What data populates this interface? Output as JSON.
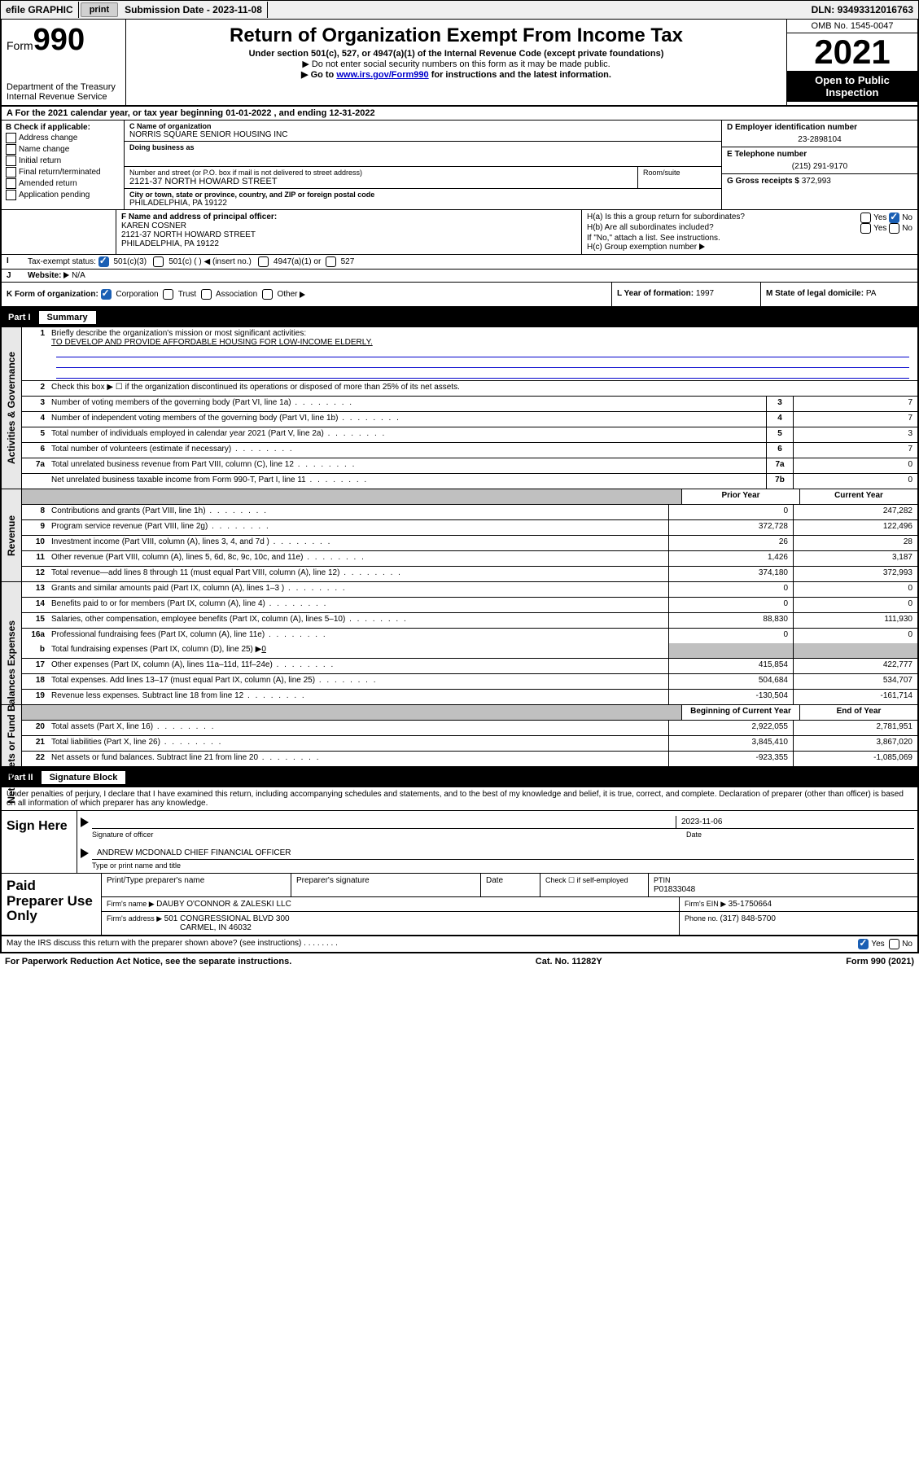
{
  "topbar": {
    "efile": "efile GRAPHIC",
    "print": "print",
    "submission_label": "Submission Date - ",
    "submission_date": "2023-11-08",
    "dln_label": "DLN: ",
    "dln": "93493312016763"
  },
  "header": {
    "form_word": "Form",
    "form_num": "990",
    "dept": "Department of the Treasury",
    "irs": "Internal Revenue Service",
    "title": "Return of Organization Exempt From Income Tax",
    "subtitle": "Under section 501(c), 527, or 4947(a)(1) of the Internal Revenue Code (except private foundations)",
    "note1": "Do not enter social security numbers on this form as it may be made public.",
    "note2_pre": "Go to ",
    "note2_link": "www.irs.gov/Form990",
    "note2_post": " for instructions and the latest information.",
    "omb": "OMB No. 1545-0047",
    "year": "2021",
    "inspection": "Open to Public Inspection"
  },
  "sectionA": {
    "text_pre": "For the 2021 calendar year, or tax year beginning ",
    "begin": "01-01-2022",
    "mid": " , and ending ",
    "end": "12-31-2022"
  },
  "boxB": {
    "title": "B Check if applicable:",
    "items": [
      "Address change",
      "Name change",
      "Initial return",
      "Final return/terminated",
      "Amended return",
      "Application pending"
    ]
  },
  "boxC": {
    "name_label": "C Name of organization",
    "name": "NORRIS SQUARE SENIOR HOUSING INC",
    "dba_label": "Doing business as",
    "dba": "",
    "street_label": "Number and street (or P.O. box if mail is not delivered to street address)",
    "room_label": "Room/suite",
    "street": "2121-37 NORTH HOWARD STREET",
    "city_label": "City or town, state or province, country, and ZIP or foreign postal code",
    "city": "PHILADELPHIA, PA  19122"
  },
  "boxD": {
    "label": "D Employer identification number",
    "value": "23-2898104"
  },
  "boxE": {
    "label": "E Telephone number",
    "value": "(215) 291-9170"
  },
  "boxG": {
    "label": "G Gross receipts $ ",
    "value": "372,993"
  },
  "boxF": {
    "label": "F Name and address of principal officer:",
    "name": "KAREN COSNER",
    "street": "2121-37 NORTH HOWARD STREET",
    "city": "PHILADELPHIA, PA  19122"
  },
  "boxH": {
    "a_label": "H(a)  Is this a group return for subordinates?",
    "b_label": "H(b)  Are all subordinates included?",
    "b_note": "If \"No,\" attach a list. See instructions.",
    "c_label": "H(c)  Group exemption number ",
    "yes": "Yes",
    "no": "No"
  },
  "boxI": {
    "label": "Tax-exempt status:",
    "opt1": "501(c)(3)",
    "opt2": "501(c) (   )  ",
    "opt2_note": "(insert no.)",
    "opt3": "4947(a)(1) or",
    "opt4": "527"
  },
  "boxJ": {
    "label": "Website: ",
    "value": "N/A"
  },
  "boxK": {
    "label": "K Form of organization:",
    "opts": [
      "Corporation",
      "Trust",
      "Association",
      "Other "
    ]
  },
  "boxL": {
    "label": "L Year of formation: ",
    "value": "1997"
  },
  "boxM": {
    "label": "M State of legal domicile: ",
    "value": "PA"
  },
  "part1": {
    "label": "Part I",
    "title": "Summary"
  },
  "governance": {
    "side": "Activities & Governance",
    "l1": "Briefly describe the organization's mission or most significant activities:",
    "l1_text": "TO DEVELOP AND PROVIDE AFFORDABLE HOUSING FOR LOW-INCOME ELDERLY.",
    "l2": "Check this box  ▶ ☐  if the organization discontinued its operations or disposed of more than 25% of its net assets.",
    "l3": "Number of voting members of the governing body (Part VI, line 1a)",
    "l3_val": "7",
    "l4": "Number of independent voting members of the governing body (Part VI, line 1b)",
    "l4_val": "7",
    "l5": "Total number of individuals employed in calendar year 2021 (Part V, line 2a)",
    "l5_val": "3",
    "l6": "Total number of volunteers (estimate if necessary)",
    "l6_val": "7",
    "l7a": "Total unrelated business revenue from Part VIII, column (C), line 12",
    "l7a_val": "0",
    "l7b": "Net unrelated business taxable income from Form 990-T, Part I, line 11",
    "l7b_val": "0"
  },
  "revenue": {
    "side": "Revenue",
    "head_prior": "Prior Year",
    "head_current": "Current Year",
    "rows": [
      {
        "n": "8",
        "d": "Contributions and grants (Part VIII, line 1h)",
        "p": "0",
        "c": "247,282"
      },
      {
        "n": "9",
        "d": "Program service revenue (Part VIII, line 2g)",
        "p": "372,728",
        "c": "122,496"
      },
      {
        "n": "10",
        "d": "Investment income (Part VIII, column (A), lines 3, 4, and 7d )",
        "p": "26",
        "c": "28"
      },
      {
        "n": "11",
        "d": "Other revenue (Part VIII, column (A), lines 5, 6d, 8c, 9c, 10c, and 11e)",
        "p": "1,426",
        "c": "3,187"
      },
      {
        "n": "12",
        "d": "Total revenue—add lines 8 through 11 (must equal Part VIII, column (A), line 12)",
        "p": "374,180",
        "c": "372,993"
      }
    ]
  },
  "expenses": {
    "side": "Expenses",
    "rows": [
      {
        "n": "13",
        "d": "Grants and similar amounts paid (Part IX, column (A), lines 1–3 )",
        "p": "0",
        "c": "0"
      },
      {
        "n": "14",
        "d": "Benefits paid to or for members (Part IX, column (A), line 4)",
        "p": "0",
        "c": "0"
      },
      {
        "n": "15",
        "d": "Salaries, other compensation, employee benefits (Part IX, column (A), lines 5–10)",
        "p": "88,830",
        "c": "111,930"
      },
      {
        "n": "16a",
        "d": "Professional fundraising fees (Part IX, column (A), line 11e)",
        "p": "0",
        "c": "0"
      }
    ],
    "l16b_pre": "Total fundraising expenses (Part IX, column (D), line 25) ▶",
    "l16b_val": "0",
    "rows2": [
      {
        "n": "17",
        "d": "Other expenses (Part IX, column (A), lines 11a–11d, 11f–24e)",
        "p": "415,854",
        "c": "422,777"
      },
      {
        "n": "18",
        "d": "Total expenses. Add lines 13–17 (must equal Part IX, column (A), line 25)",
        "p": "504,684",
        "c": "534,707"
      },
      {
        "n": "19",
        "d": "Revenue less expenses. Subtract line 18 from line 12",
        "p": "-130,504",
        "c": "-161,714"
      }
    ]
  },
  "netassets": {
    "side": "Net Assets or Fund Balances",
    "head_begin": "Beginning of Current Year",
    "head_end": "End of Year",
    "rows": [
      {
        "n": "20",
        "d": "Total assets (Part X, line 16)",
        "p": "2,922,055",
        "c": "2,781,951"
      },
      {
        "n": "21",
        "d": "Total liabilities (Part X, line 26)",
        "p": "3,845,410",
        "c": "3,867,020"
      },
      {
        "n": "22",
        "d": "Net assets or fund balances. Subtract line 21 from line 20",
        "p": "-923,355",
        "c": "-1,085,069"
      }
    ]
  },
  "part2": {
    "label": "Part II",
    "title": "Signature Block"
  },
  "penalties": "Under penalties of perjury, I declare that I have examined this return, including accompanying schedules and statements, and to the best of my knowledge and belief, it is true, correct, and complete. Declaration of preparer (other than officer) is based on all information of which preparer has any knowledge.",
  "sign": {
    "label": "Sign Here",
    "sig_officer": "Signature of officer",
    "date_label": "Date",
    "date": "2023-11-06",
    "name": "ANDREW MCDONALD CHIEF FINANCIAL OFFICER",
    "name_label": "Type or print name and title"
  },
  "preparer": {
    "label": "Paid Preparer Use Only",
    "h1": "Print/Type preparer's name",
    "h2": "Preparer's signature",
    "h3": "Date",
    "h4_pre": "Check ☐ if self-employed",
    "h5_pre": "PTIN",
    "ptin": "P01833048",
    "firm_name_label": "Firm's name    ▶ ",
    "firm_name": "DAUBY O'CONNOR & ZALESKI LLC",
    "firm_ein_label": "Firm's EIN ▶ ",
    "firm_ein": "35-1750664",
    "firm_addr_label": "Firm's address ▶ ",
    "firm_addr1": "501 CONGRESSIONAL BLVD 300",
    "firm_addr2": "CARMEL, IN  46032",
    "phone_label": "Phone no. ",
    "phone": "(317) 848-5700"
  },
  "discuss": {
    "text": "May the IRS discuss this return with the preparer shown above? (see instructions)",
    "yes": "Yes",
    "no": "No"
  },
  "footer": {
    "left": "For Paperwork Reduction Act Notice, see the separate instructions.",
    "mid": "Cat. No. 11282Y",
    "right_pre": "Form ",
    "right_form": "990",
    "right_post": " (2021)"
  }
}
